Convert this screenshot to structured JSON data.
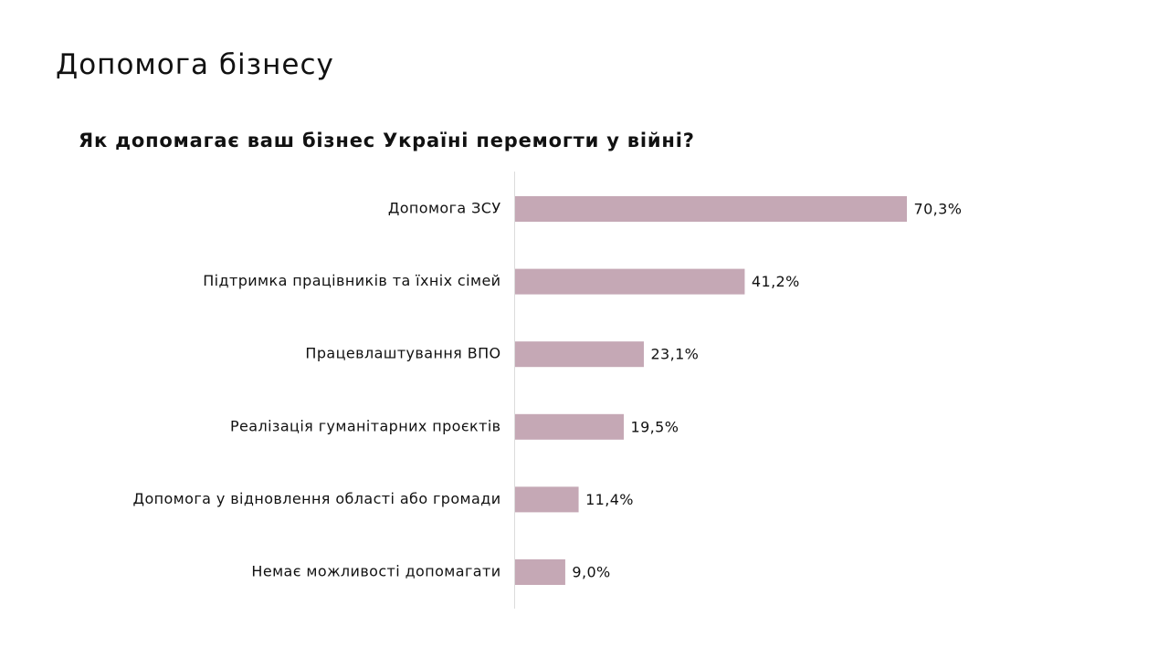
{
  "page": {
    "title": "Допомога бізнесу"
  },
  "chart_data": {
    "type": "bar",
    "orientation": "horizontal",
    "title": "Як допомагає ваш бізнес Україні перемогти у війні?",
    "xlabel": "",
    "ylabel": "",
    "xlim": [
      0,
      100
    ],
    "grid": false,
    "legend": "none",
    "bar_color": "#c5a8b5",
    "axis_color": "#dcdcdc",
    "categories": [
      "Допомога ЗСУ",
      "Підтримка працівників та їхніх сімей",
      "Працевлаштування ВПО",
      "Реалізація гуманітарних проєктів",
      "Допомога у відновлення області або громади",
      "Немає можливості допомагати"
    ],
    "values": [
      70.3,
      41.2,
      23.1,
      19.5,
      11.4,
      9.0
    ],
    "data_labels": [
      "70,3%",
      "41,2%",
      "23,1%",
      "19,5%",
      "11,4%",
      "9,0%"
    ]
  }
}
